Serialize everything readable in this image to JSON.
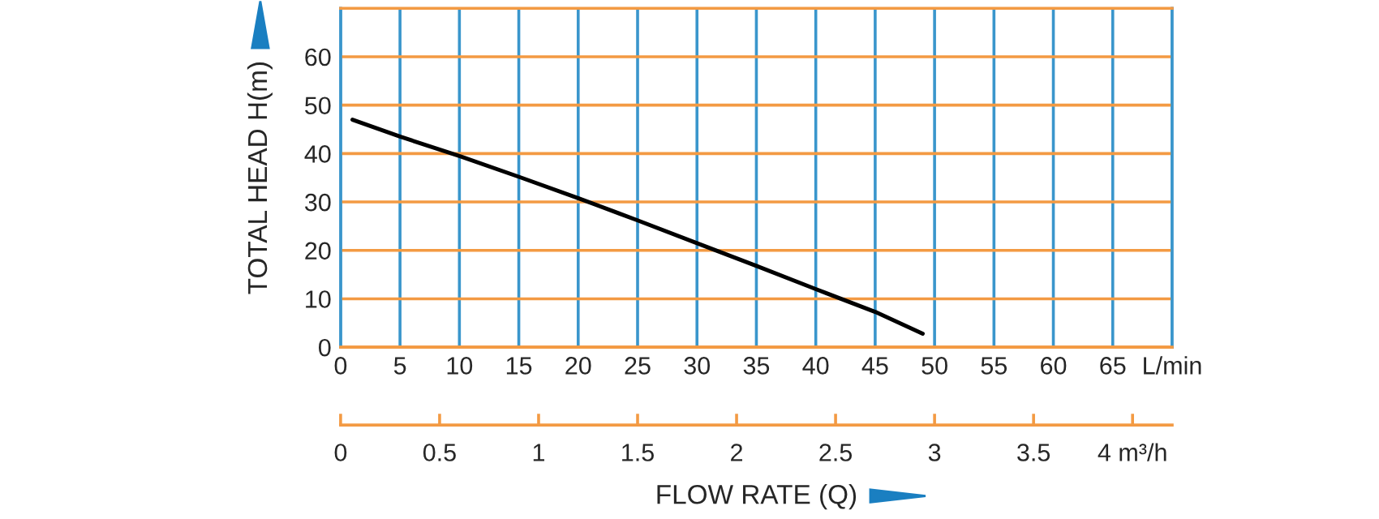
{
  "chart_data": {
    "type": "line",
    "ylabel": "TOTAL HEAD H(m)",
    "xlabel": "FLOW RATE (Q)",
    "x": [
      1,
      5,
      10,
      15,
      20,
      25,
      30,
      35,
      40,
      45,
      49
    ],
    "series": [
      {
        "color": "#000000",
        "values": [
          47,
          43.5,
          39.5,
          35.2,
          30.8,
          26.2,
          21.5,
          16.8,
          12,
          7.3,
          2.8
        ]
      }
    ],
    "xlim": [
      0,
      70
    ],
    "xticks": [
      0,
      5,
      10,
      15,
      20,
      25,
      30,
      35,
      40,
      45,
      50,
      55,
      60,
      65,
      {
        "value": 70,
        "label": "L/min"
      }
    ],
    "ylim": [
      0,
      70
    ],
    "yticks": [
      0,
      10,
      20,
      30,
      40,
      50,
      60,
      {
        "value": 70,
        "label": null
      }
    ],
    "x2lim": [
      0,
      4.2
    ],
    "x2ticks": [
      0,
      0.5,
      1,
      1.5,
      2,
      2.5,
      3,
      3.5,
      {
        "value": 4,
        "label": "4 m³/h"
      }
    ],
    "grid": true,
    "marker": "none",
    "line_style": "solid"
  }
}
